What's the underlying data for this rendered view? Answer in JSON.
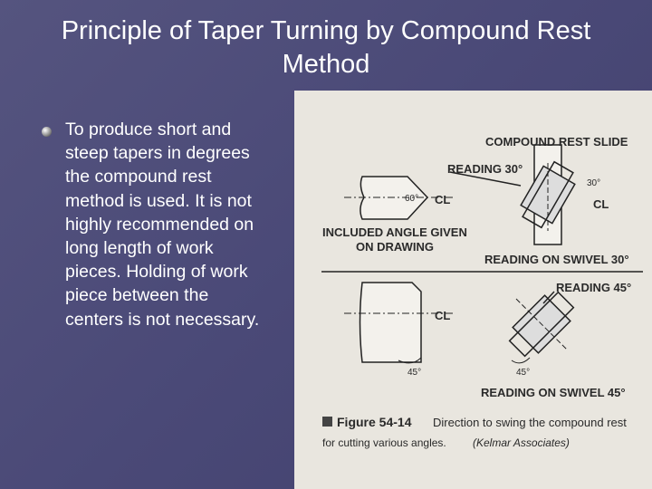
{
  "title": "Principle of Taper Turning by Compound Rest Method",
  "bullet": "To produce short and steep tapers in degrees the compound rest method is used. It is not highly recommended on long length of work pieces. Holding of work piece between the centers is not necessary.",
  "figure": {
    "compound_rest_slide": "COMPOUND REST SLIDE",
    "reading_30": "READING 30°",
    "angle_60": "60°",
    "centerline": "CL",
    "angle_30": "30°",
    "included_angle": [
      "INCLUDED ANGLE GIVEN",
      "ON DRAWING"
    ],
    "swivel_30": "READING ON SWIVEL 30°",
    "reading_45": "READING 45°",
    "angle_45": "45°",
    "swivel_45": "READING ON SWIVEL 45°",
    "caption_number": "Figure 54-14",
    "caption_text": "Direction to swing the compound rest",
    "caption_text_2": "for cutting various angles.",
    "caption_credit": "(Kelmar Associates)"
  }
}
